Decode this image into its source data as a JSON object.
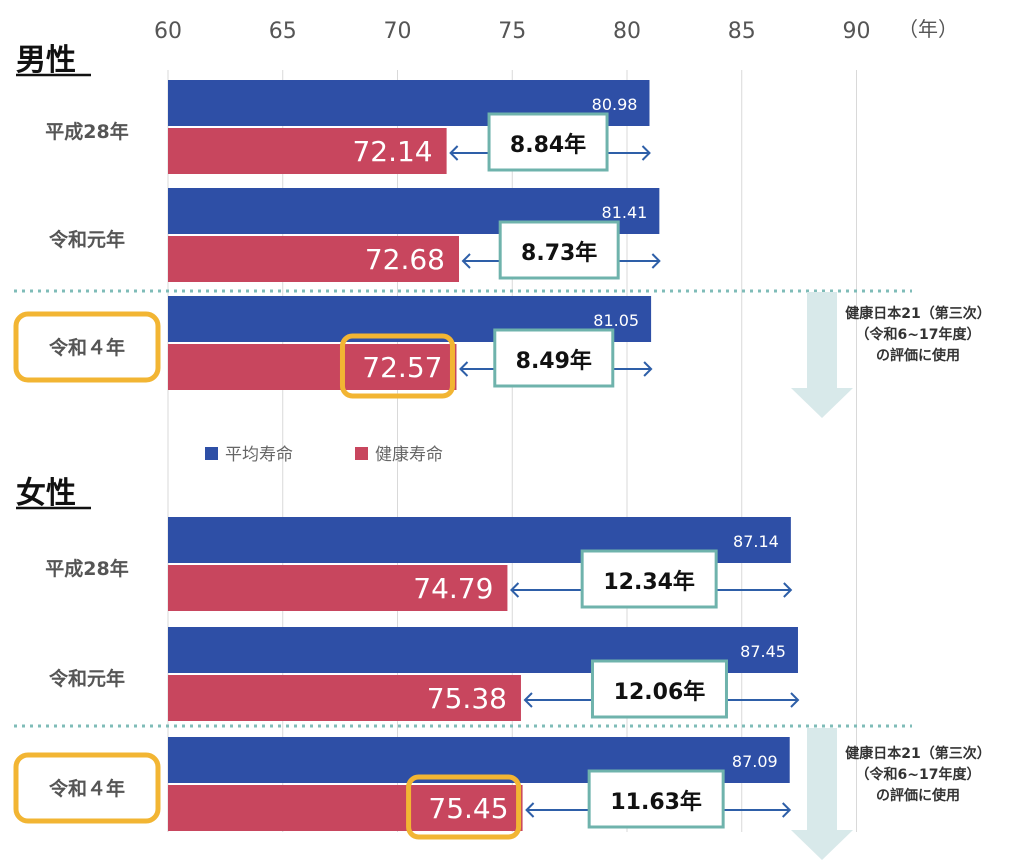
{
  "chart_data": {
    "type": "bar",
    "orientation": "horizontal",
    "xlim": [
      60,
      90
    ],
    "ticks": [
      "60",
      "65",
      "70",
      "75",
      "80",
      "85",
      "90"
    ],
    "unit_label": "（年）",
    "grid": true,
    "legend": [
      {
        "name": "平均寿命",
        "color": "#2e4fa6"
      },
      {
        "name": "健康寿命",
        "color": "#c8465e"
      }
    ],
    "colors": {
      "avg": "#2e4fa6",
      "healthy": "#c8465e",
      "gap_border": "#6fb3ac",
      "highlight": "#f2b533",
      "arrow": "#2e5fa8",
      "note_arrow": "#d8e9ea"
    },
    "groups": [
      {
        "title": "男性",
        "note": [
          "健康日本21（第三次）",
          "（令和6~17年度）",
          "の評価に使用"
        ],
        "rows": [
          {
            "label": "平成28年",
            "avg": 80.98,
            "avg_label": "80.98",
            "healthy": 72.14,
            "healthy_label": "72.14",
            "gap_label": "8.84年",
            "highlight": false
          },
          {
            "label": "令和元年",
            "avg": 81.41,
            "avg_label": "81.41",
            "healthy": 72.68,
            "healthy_label": "72.68",
            "gap_label": "8.73年",
            "highlight": false
          },
          {
            "label": "令和４年",
            "avg": 81.05,
            "avg_label": "81.05",
            "healthy": 72.57,
            "healthy_label": "72.57",
            "gap_label": "8.49年",
            "highlight": true
          }
        ]
      },
      {
        "title": "女性",
        "note": [
          "健康日本21（第三次）",
          "（令和6~17年度）",
          "の評価に使用"
        ],
        "rows": [
          {
            "label": "平成28年",
            "avg": 87.14,
            "avg_label": "87.14",
            "healthy": 74.79,
            "healthy_label": "74.79",
            "gap_label": "12.34年",
            "highlight": false
          },
          {
            "label": "令和元年",
            "avg": 87.45,
            "avg_label": "87.45",
            "healthy": 75.38,
            "healthy_label": "75.38",
            "gap_label": "12.06年",
            "highlight": false
          },
          {
            "label": "令和４年",
            "avg": 87.09,
            "avg_label": "87.09",
            "healthy": 75.45,
            "healthy_label": "75.45",
            "gap_label": "11.63年",
            "highlight": true
          }
        ]
      }
    ]
  }
}
